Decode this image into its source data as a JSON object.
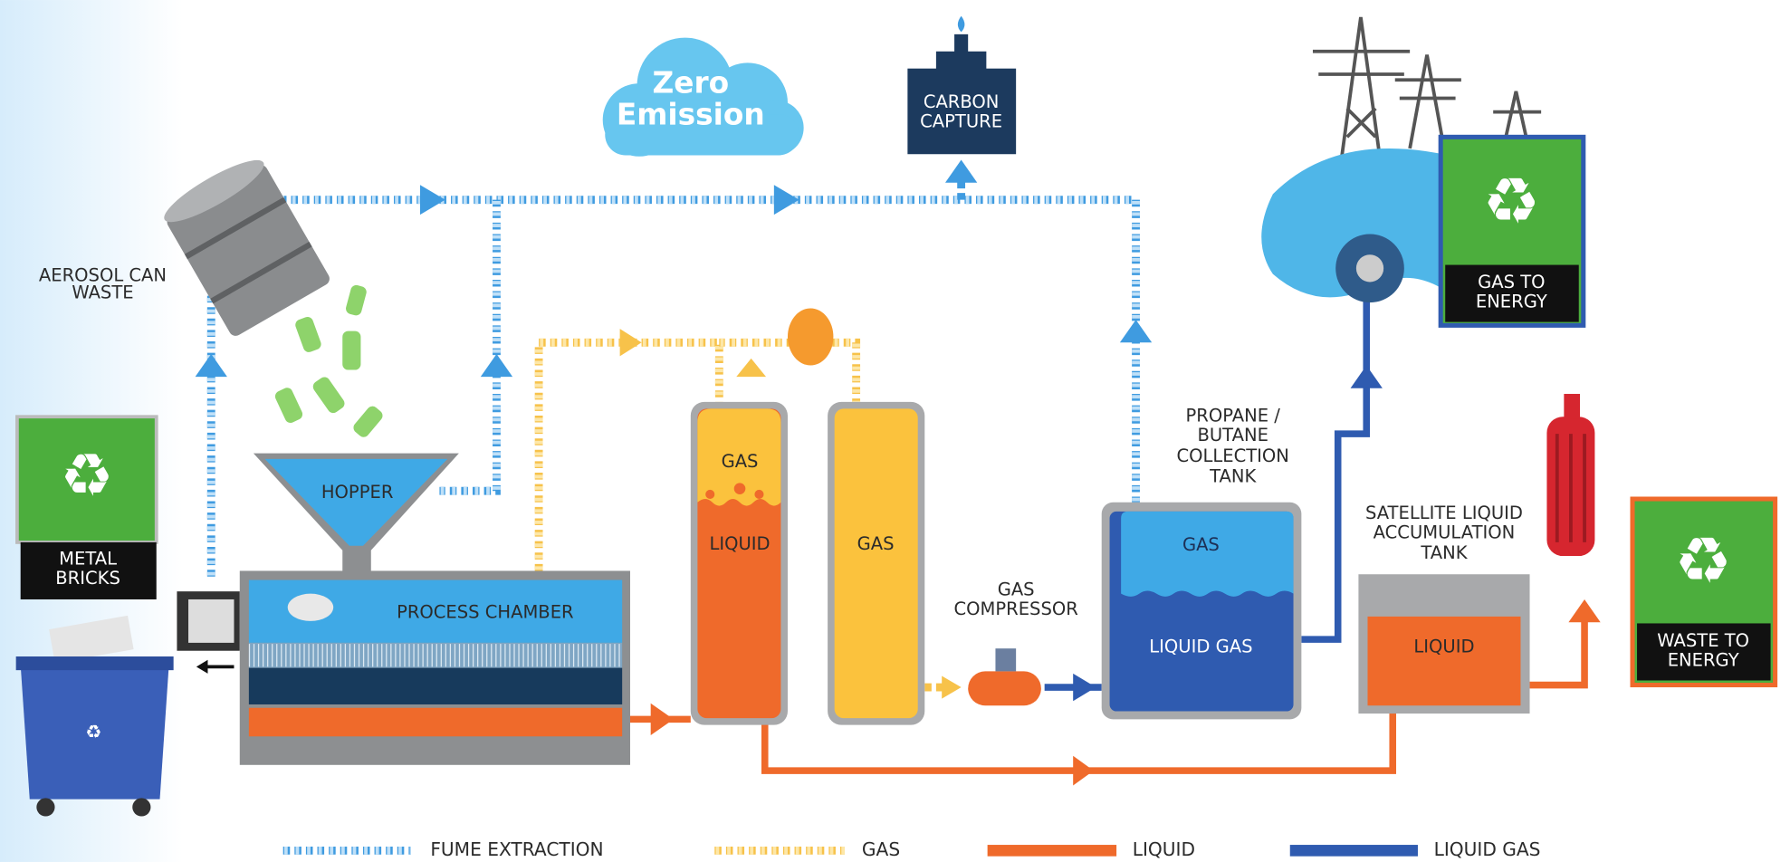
{
  "cloud": {
    "lines": [
      "Zero",
      "Emission"
    ]
  },
  "nodes": {
    "carbon_capture": [
      "CARBON",
      "CAPTURE"
    ],
    "aerosol": [
      "AEROSOL CAN",
      "WASTE"
    ],
    "metal_bricks": [
      "METAL",
      "BRICKS"
    ],
    "hopper": "HOPPER",
    "process_chamber": "PROCESS CHAMBER",
    "tank1_gas": "GAS",
    "tank1_liquid": "LIQUID",
    "tank2_gas": "GAS",
    "compressor": [
      "GAS",
      "COMPRESSOR"
    ],
    "collection_tank": [
      "PROPANE /",
      "BUTANE",
      "COLLECTION",
      "TANK"
    ],
    "collection_gas": "GAS",
    "collection_liquid_gas": "LIQUID GAS",
    "satellite_tank": [
      "SATELLITE LIQUID",
      "ACCUMULATION",
      "TANK"
    ],
    "satellite_liquid": "LIQUID",
    "gas_to_energy": [
      "GAS TO",
      "ENERGY"
    ],
    "waste_to_energy": [
      "WASTE TO",
      "ENERGY"
    ]
  },
  "legend": [
    "FUME EXTRACTION",
    "GAS",
    "LIQUID",
    "LIQUID GAS"
  ]
}
